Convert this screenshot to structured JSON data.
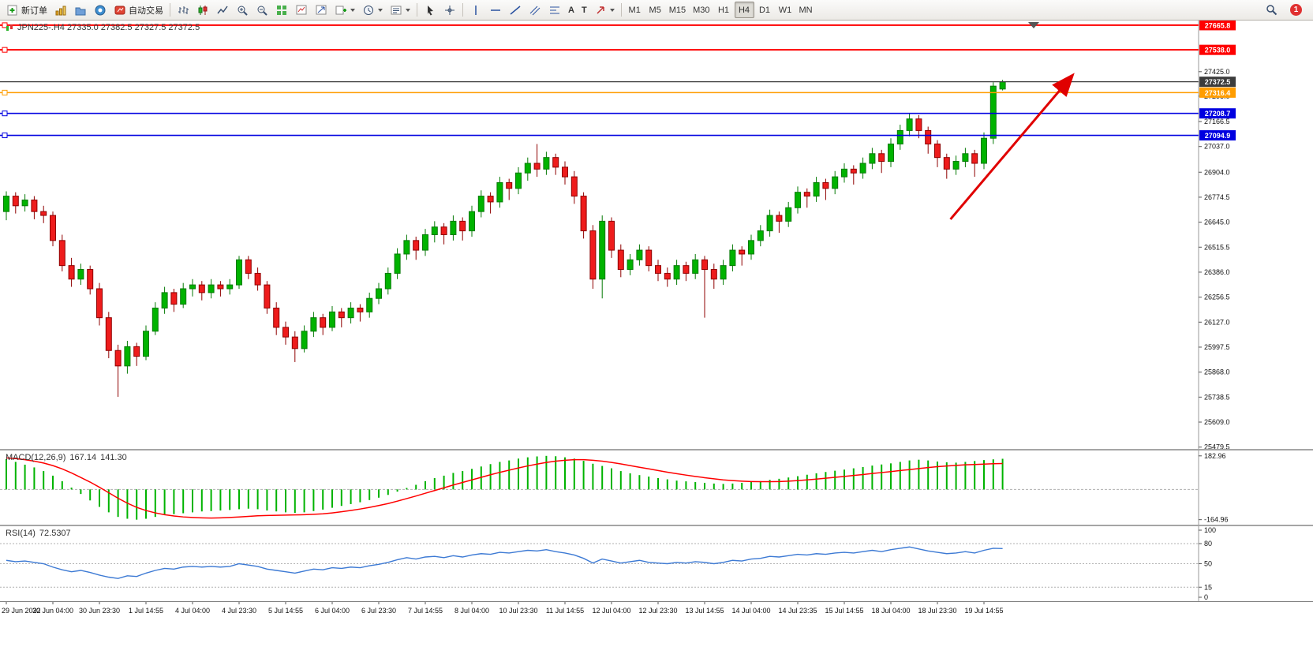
{
  "toolbar": {
    "new_order_label": "新订单",
    "autotrading_label": "自动交易",
    "text_tool_label": "A",
    "label_tool_label": "T",
    "timeframes": [
      "M1",
      "M5",
      "M15",
      "M30",
      "H1",
      "H4",
      "D1",
      "W1",
      "MN"
    ],
    "active_timeframe": "H4",
    "notification_count": "1"
  },
  "chart": {
    "title": "JPN225-.H4 27335.0 27382.5 27327.5 27372.5"
  },
  "macd": {
    "name": "MACD(12,26,9)",
    "value_main": "167.14",
    "value_signal": "141.30"
  },
  "rsi": {
    "name": "RSI(14)",
    "value": "72.5307"
  },
  "chart_data": [
    {
      "type": "candlestick",
      "symbol": "JPN225-.H4",
      "timeframe": "H4",
      "current_ohlc": {
        "open": 27335.0,
        "high": 27382.5,
        "low": 27327.5,
        "close": 27372.5
      },
      "ylim": [
        25470,
        27690
      ],
      "y_ticks": [
        27425.0,
        27298.0,
        27166.5,
        27037.0,
        26904.0,
        26774.5,
        26645.0,
        26515.5,
        26386.0,
        26256.5,
        26127.0,
        25997.5,
        25868.0,
        25738.5,
        25609.0,
        25479.5
      ],
      "x_labels": [
        "29 Jun 2022",
        "30 Jun 04:00",
        "30 Jun 23:30",
        "1 Jul 14:55",
        "4 Jul 04:00",
        "4 Jul 23:30",
        "5 Jul 14:55",
        "6 Jul 04:00",
        "6 Jul 23:30",
        "7 Jul 14:55",
        "8 Jul 04:00",
        "10 Jul 23:30",
        "11 Jul 14:55",
        "12 Jul 04:00",
        "12 Jul 23:30",
        "13 Jul 14:55",
        "14 Jul 04:00",
        "14 Jul 23:35",
        "15 Jul 14:55",
        "18 Jul 04:00",
        "18 Jul 23:30",
        "19 Jul 14:55"
      ],
      "label_every": 5,
      "colors": {
        "up": "#00b300",
        "up_edge": "#067a06",
        "down": "#ee1c1c",
        "down_edge": "#8f0000"
      },
      "hlines": [
        {
          "price": 27665.8,
          "color": "#ff0000",
          "label": "27665.8"
        },
        {
          "price": 27538.0,
          "color": "#ff0000",
          "label": "27538.0"
        },
        {
          "price": 27372.5,
          "color": "#3c3c3c",
          "label": "27372.5"
        },
        {
          "price": 27316.4,
          "color": "#ff9d00",
          "label": "27316.4"
        },
        {
          "price": 27208.7,
          "color": "#0000e0",
          "label": "27208.7"
        },
        {
          "price": 27094.9,
          "color": "#0000e0",
          "label": "27094.9"
        }
      ],
      "arrow": {
        "from_candle": 101.4,
        "from_price": 26660,
        "to_candle": 114.4,
        "to_price": 27400,
        "color": "#e00000"
      },
      "candles": [
        [
          26700,
          26805,
          26655,
          26780
        ],
        [
          26780,
          26800,
          26690,
          26730
        ],
        [
          26730,
          26790,
          26700,
          26760
        ],
        [
          26760,
          26780,
          26660,
          26700
        ],
        [
          26700,
          26730,
          26640,
          26680
        ],
        [
          26680,
          26700,
          26520,
          26550
        ],
        [
          26550,
          26580,
          26390,
          26420
        ],
        [
          26420,
          26460,
          26310,
          26350
        ],
        [
          26350,
          26430,
          26320,
          26400
        ],
        [
          26400,
          26420,
          26270,
          26300
        ],
        [
          26300,
          26330,
          26110,
          26150
        ],
        [
          26150,
          26180,
          25940,
          25980
        ],
        [
          25980,
          26010,
          25740,
          25900
        ],
        [
          25900,
          26030,
          25860,
          26000
        ],
        [
          26000,
          26020,
          25900,
          25950
        ],
        [
          25950,
          26110,
          25930,
          26080
        ],
        [
          26080,
          26230,
          26060,
          26200
        ],
        [
          26200,
          26310,
          26170,
          26280
        ],
        [
          26280,
          26300,
          26180,
          26220
        ],
        [
          26220,
          26330,
          26200,
          26300
        ],
        [
          26300,
          26350,
          26260,
          26320
        ],
        [
          26320,
          26340,
          26240,
          26280
        ],
        [
          26280,
          26350,
          26250,
          26320
        ],
        [
          26320,
          26340,
          26260,
          26300
        ],
        [
          26300,
          26350,
          26270,
          26320
        ],
        [
          26320,
          26470,
          26300,
          26450
        ],
        [
          26450,
          26470,
          26350,
          26380
        ],
        [
          26380,
          26410,
          26290,
          26320
        ],
        [
          26320,
          26340,
          26170,
          26200
        ],
        [
          26200,
          26230,
          26060,
          26100
        ],
        [
          26100,
          26130,
          26010,
          26050
        ],
        [
          26050,
          26080,
          25920,
          25990
        ],
        [
          25990,
          26110,
          25970,
          26080
        ],
        [
          26080,
          26180,
          26050,
          26150
        ],
        [
          26150,
          26170,
          26060,
          26100
        ],
        [
          26100,
          26210,
          26080,
          26180
        ],
        [
          26180,
          26200,
          26100,
          26150
        ],
        [
          26150,
          26230,
          26120,
          26200
        ],
        [
          26200,
          26220,
          26130,
          26180
        ],
        [
          26180,
          26280,
          26150,
          26250
        ],
        [
          26250,
          26330,
          26220,
          26300
        ],
        [
          26300,
          26410,
          26270,
          26380
        ],
        [
          26380,
          26510,
          26350,
          26480
        ],
        [
          26480,
          26580,
          26450,
          26550
        ],
        [
          26550,
          26570,
          26450,
          26500
        ],
        [
          26500,
          26610,
          26470,
          26580
        ],
        [
          26580,
          26650,
          26540,
          26620
        ],
        [
          26620,
          26640,
          26530,
          26580
        ],
        [
          26580,
          26680,
          26550,
          26650
        ],
        [
          26650,
          26670,
          26550,
          26600
        ],
        [
          26600,
          26730,
          26570,
          26700
        ],
        [
          26700,
          26810,
          26670,
          26780
        ],
        [
          26780,
          26800,
          26690,
          26750
        ],
        [
          26750,
          26880,
          26720,
          26850
        ],
        [
          26850,
          26870,
          26760,
          26820
        ],
        [
          26820,
          26930,
          26790,
          26900
        ],
        [
          26900,
          26980,
          26860,
          26950
        ],
        [
          26950,
          27050,
          26880,
          26920
        ],
        [
          26920,
          27010,
          26890,
          26980
        ],
        [
          26980,
          27000,
          26890,
          26930
        ],
        [
          26930,
          26960,
          26840,
          26880
        ],
        [
          26880,
          26910,
          26740,
          26780
        ],
        [
          26780,
          26800,
          26560,
          26600
        ],
        [
          26600,
          26630,
          26300,
          26350
        ],
        [
          26350,
          26680,
          26250,
          26650
        ],
        [
          26650,
          26670,
          26460,
          26500
        ],
        [
          26500,
          26530,
          26360,
          26400
        ],
        [
          26400,
          26480,
          26370,
          26450
        ],
        [
          26450,
          26530,
          26420,
          26500
        ],
        [
          26500,
          26520,
          26390,
          26420
        ],
        [
          26420,
          26450,
          26340,
          26380
        ],
        [
          26380,
          26410,
          26310,
          26350
        ],
        [
          26350,
          26450,
          26320,
          26420
        ],
        [
          26420,
          26440,
          26340,
          26380
        ],
        [
          26380,
          26480,
          26350,
          26450
        ],
        [
          26450,
          26470,
          26150,
          26400
        ],
        [
          26400,
          26430,
          26300,
          26350
        ],
        [
          26350,
          26450,
          26320,
          26420
        ],
        [
          26420,
          26530,
          26390,
          26500
        ],
        [
          26500,
          26520,
          26420,
          26480
        ],
        [
          26480,
          26580,
          26450,
          26550
        ],
        [
          26550,
          26630,
          26520,
          26600
        ],
        [
          26600,
          26710,
          26570,
          26680
        ],
        [
          26680,
          26700,
          26590,
          26650
        ],
        [
          26650,
          26750,
          26620,
          26720
        ],
        [
          26720,
          26830,
          26690,
          26800
        ],
        [
          26800,
          26820,
          26720,
          26780
        ],
        [
          26780,
          26880,
          26750,
          26850
        ],
        [
          26850,
          26870,
          26760,
          26820
        ],
        [
          26820,
          26910,
          26790,
          26880
        ],
        [
          26880,
          26950,
          26850,
          26920
        ],
        [
          26920,
          26940,
          26840,
          26900
        ],
        [
          26900,
          26980,
          26870,
          26950
        ],
        [
          26950,
          27030,
          26920,
          27000
        ],
        [
          27000,
          27020,
          26900,
          26960
        ],
        [
          26960,
          27080,
          26930,
          27050
        ],
        [
          27050,
          27150,
          27020,
          27120
        ],
        [
          27120,
          27210,
          27090,
          27180
        ],
        [
          27180,
          27200,
          27080,
          27120
        ],
        [
          27120,
          27140,
          27000,
          27050
        ],
        [
          27050,
          27070,
          26930,
          26980
        ],
        [
          26980,
          27000,
          26870,
          26920
        ],
        [
          26920,
          26990,
          26890,
          26960
        ],
        [
          26960,
          27030,
          26930,
          27000
        ],
        [
          27000,
          27020,
          26880,
          26950
        ],
        [
          26950,
          27110,
          26920,
          27080
        ],
        [
          27080,
          27370,
          27050,
          27350
        ],
        [
          27335,
          27382.5,
          27327.5,
          27372.5
        ]
      ]
    },
    {
      "type": "bar",
      "name": "MACD",
      "label": "MACD(12,26,9) 167.14 141.30",
      "ylim": [
        -175,
        195
      ],
      "y_ticks": [
        "182.96",
        "-164.96"
      ],
      "colors": {
        "histogram": "#00b300",
        "signal": "#ff0000"
      },
      "values": [
        165,
        150,
        135,
        120,
        100,
        75,
        45,
        10,
        -25,
        -60,
        -95,
        -125,
        -150,
        -160,
        -165,
        -160,
        -150,
        -140,
        -135,
        -130,
        -125,
        -120,
        -118,
        -115,
        -112,
        -108,
        -105,
        -108,
        -115,
        -120,
        -125,
        -128,
        -125,
        -118,
        -110,
        -100,
        -90,
        -80,
        -70,
        -58,
        -45,
        -30,
        -12,
        8,
        25,
        45,
        62,
        75,
        90,
        100,
        112,
        125,
        138,
        150,
        158,
        168,
        175,
        180,
        182.96,
        181,
        175,
        168,
        156,
        140,
        128,
        115,
        100,
        88,
        78,
        70,
        62,
        55,
        48,
        44,
        40,
        36,
        32,
        30,
        32,
        36,
        40,
        45,
        52,
        58,
        65,
        72,
        80,
        88,
        95,
        102,
        108,
        115,
        122,
        130,
        136,
        142,
        150,
        158,
        162,
        158,
        152,
        148,
        146,
        150,
        155,
        160,
        164,
        167.14
      ],
      "signal": [
        172,
        168,
        162,
        154,
        144,
        130,
        112,
        90,
        65,
        40,
        12,
        -18,
        -48,
        -75,
        -98,
        -115,
        -128,
        -138,
        -145,
        -150,
        -153,
        -155,
        -156,
        -155,
        -153,
        -150,
        -147,
        -144,
        -142,
        -141,
        -140,
        -139,
        -138,
        -136,
        -133,
        -128,
        -122,
        -115,
        -107,
        -98,
        -88,
        -77,
        -64,
        -50,
        -36,
        -21,
        -6,
        9,
        24,
        38,
        52,
        66,
        80,
        93,
        105,
        117,
        128,
        138,
        147,
        154,
        159,
        162,
        162,
        159,
        154,
        147,
        139,
        130,
        121,
        112,
        103,
        94,
        86,
        78,
        71,
        64,
        58,
        52,
        48,
        45,
        43,
        42,
        42,
        43,
        45,
        48,
        52,
        56,
        61,
        66,
        71,
        76,
        81,
        87,
        92,
        97,
        103,
        108,
        114,
        119,
        124,
        128,
        131,
        134,
        136,
        138,
        140,
        141.3
      ]
    },
    {
      "type": "line",
      "name": "RSI",
      "label": "RSI(14) 72.5307",
      "ylim": [
        0,
        100
      ],
      "y_ticks": [
        "100",
        "80",
        "50",
        "15",
        "0"
      ],
      "levels": [
        80,
        50,
        15
      ],
      "colors": {
        "line": "#3d7ad4"
      },
      "values": [
        55,
        53,
        54,
        52,
        50,
        45,
        41,
        38,
        40,
        37,
        33,
        30,
        28,
        32,
        31,
        36,
        40,
        43,
        42,
        45,
        46,
        45,
        46,
        45,
        46,
        50,
        48,
        46,
        42,
        40,
        38,
        36,
        39,
        42,
        41,
        44,
        43,
        45,
        44,
        47,
        49,
        52,
        56,
        59,
        57,
        60,
        61,
        59,
        62,
        60,
        63,
        65,
        64,
        67,
        66,
        68,
        70,
        69,
        71,
        68,
        66,
        63,
        58,
        51,
        57,
        54,
        51,
        53,
        55,
        52,
        51,
        50,
        52,
        51,
        53,
        52,
        50,
        52,
        55,
        54,
        57,
        58,
        61,
        60,
        62,
        64,
        63,
        65,
        64,
        66,
        67,
        66,
        68,
        70,
        68,
        71,
        73,
        75,
        72,
        69,
        67,
        65,
        66,
        68,
        66,
        70,
        73,
        72.53
      ]
    }
  ]
}
